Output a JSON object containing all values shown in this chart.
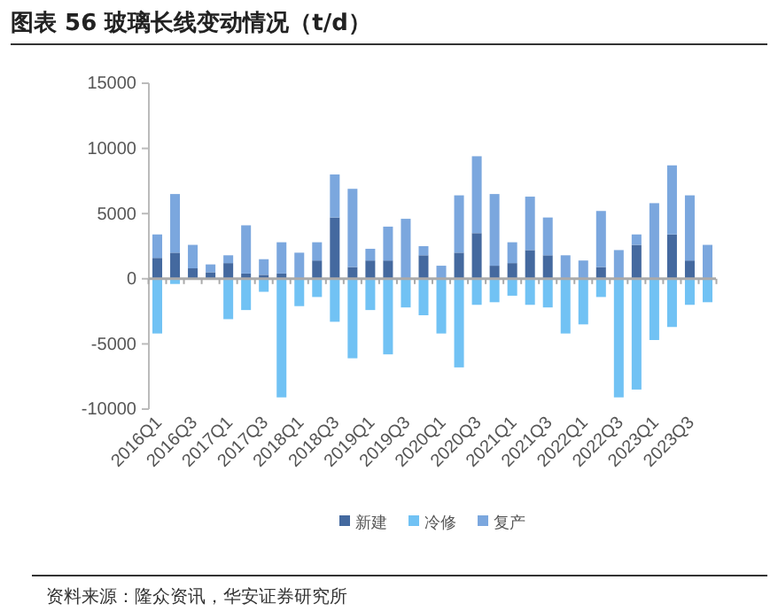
{
  "chart_data": {
    "type": "bar",
    "title": "图表 56  玻璃长线变动情况（t/d）",
    "annotations": [
      "资料来源：隆众资讯，华安证券研究所"
    ],
    "categories": [
      "2016Q1",
      null,
      "2016Q3",
      null,
      "2017Q1",
      null,
      "2017Q3",
      null,
      "2018Q1",
      null,
      "2018Q3",
      null,
      "2019Q1",
      null,
      "2019Q3",
      null,
      "2020Q1",
      null,
      "2020Q3",
      null,
      "2021Q1",
      null,
      "2021Q3",
      null,
      "2022Q1",
      null,
      "2022Q3",
      null,
      "2023Q1",
      null,
      "2023Q3",
      null
    ],
    "stacked": true,
    "series": [
      {
        "name": "新建",
        "color": "#44699f",
        "values": [
          1600,
          2000,
          800,
          500,
          1200,
          400,
          300,
          400,
          0,
          1400,
          4700,
          900,
          1400,
          1400,
          0,
          1800,
          0,
          2000,
          3500,
          1000,
          1200,
          2200,
          1800,
          0,
          0,
          900,
          0,
          2600,
          0,
          3400,
          1400,
          0
        ]
      },
      {
        "name": "冷修",
        "color": "#71c2f4",
        "values": [
          -4200,
          -400,
          0,
          0,
          -3100,
          -2400,
          -1000,
          -9100,
          -2100,
          -1400,
          -3300,
          -6100,
          -2400,
          -5800,
          -2200,
          -2800,
          -4200,
          -6800,
          -2000,
          -1800,
          -1300,
          -2000,
          -2200,
          -4200,
          -3500,
          -1400,
          -9100,
          -8500,
          -4700,
          -3700,
          -2000,
          -1800
        ]
      },
      {
        "name": "复产",
        "color": "#7ba7de",
        "values": [
          1800,
          4500,
          1800,
          600,
          600,
          3700,
          1200,
          2400,
          2000,
          1400,
          3300,
          6000,
          900,
          2600,
          4600,
          700,
          1000,
          4400,
          5900,
          5500,
          1600,
          4100,
          2900,
          1800,
          1400,
          4300,
          2200,
          800,
          5800,
          5300,
          5000,
          2600
        ]
      }
    ],
    "ylim": [
      -10000,
      15000
    ],
    "yticks": [
      -10000,
      -5000,
      0,
      5000,
      10000,
      15000
    ],
    "legend": "bottom"
  }
}
